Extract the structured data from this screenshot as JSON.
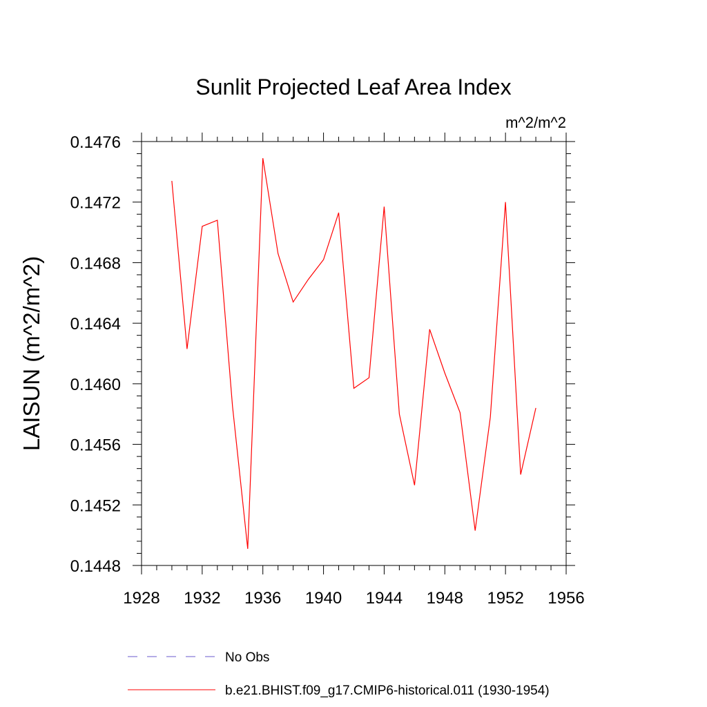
{
  "chart_data": {
    "type": "line",
    "title": "Sunlit Projected Leaf Area Index",
    "units_label": "m^2/m^2",
    "xlabel": "",
    "ylabel": "LAISUN  (m^2/m^2)",
    "xlim": [
      1928,
      1956
    ],
    "ylim": [
      0.1448,
      0.1476
    ],
    "x_ticks": [
      "1928",
      "1932",
      "1936",
      "1940",
      "1944",
      "1948",
      "1952",
      "1956"
    ],
    "y_ticks": [
      "0.1448",
      "0.1452",
      "0.1456",
      "0.1460",
      "0.1464",
      "0.1468",
      "0.1472",
      "0.1476"
    ],
    "grid": false,
    "legend_placement": "bottom",
    "series": [
      {
        "name": "No Obs",
        "color": "#6a5acd",
        "dash": true,
        "x": [],
        "values": []
      },
      {
        "name": "b.e21.BHIST.f09_g17.CMIP6-historical.011 (1930-1954)",
        "color": "#ff0000",
        "dash": false,
        "x": [
          1930,
          1931,
          1932,
          1933,
          1934,
          1935,
          1936,
          1937,
          1938,
          1939,
          1940,
          1941,
          1942,
          1943,
          1944,
          1945,
          1946,
          1947,
          1948,
          1949,
          1950,
          1951,
          1952,
          1953,
          1954
        ],
        "values": [
          0.14734,
          0.14623,
          0.14704,
          0.14708,
          0.14585,
          0.14491,
          0.14749,
          0.14686,
          0.14654,
          0.14669,
          0.14682,
          0.14713,
          0.14597,
          0.14604,
          0.14717,
          0.1458,
          0.14533,
          0.14636,
          0.14607,
          0.14581,
          0.14503,
          0.14578,
          0.1472,
          0.1454,
          0.14584
        ]
      }
    ]
  }
}
